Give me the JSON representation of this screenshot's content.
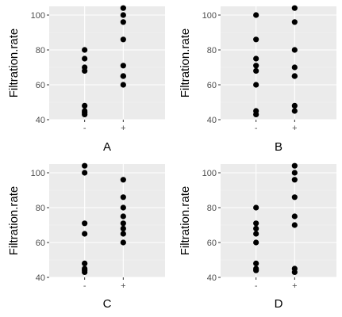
{
  "chart_data": [
    {
      "type": "scatter",
      "title": "",
      "xlabel": "A",
      "ylabel": "Filtration.rate",
      "categories": [
        "-",
        "+"
      ],
      "ylim": [
        40,
        105
      ],
      "yticks": [
        40,
        60,
        80,
        100
      ],
      "grid": true,
      "points": {
        "-": [
          80,
          75,
          70,
          68,
          48,
          45,
          44,
          43
        ],
        "+": [
          104,
          100,
          96,
          86,
          71,
          65,
          65,
          60
        ]
      }
    },
    {
      "type": "scatter",
      "title": "",
      "xlabel": "B",
      "ylabel": "Filtration.rate",
      "categories": [
        "-",
        "+"
      ],
      "ylim": [
        40,
        105
      ],
      "yticks": [
        40,
        60,
        80,
        100
      ],
      "grid": true,
      "points": {
        "-": [
          100,
          86,
          75,
          71,
          68,
          60,
          45,
          43
        ],
        "+": [
          104,
          96,
          80,
          70,
          65,
          65,
          48,
          45
        ]
      }
    },
    {
      "type": "scatter",
      "title": "",
      "xlabel": "C",
      "ylabel": "Filtration.rate",
      "categories": [
        "-",
        "+"
      ],
      "ylim": [
        40,
        105
      ],
      "yticks": [
        40,
        60,
        80,
        100
      ],
      "grid": true,
      "points": {
        "-": [
          104,
          100,
          71,
          65,
          48,
          45,
          44,
          43
        ],
        "+": [
          96,
          86,
          80,
          75,
          71,
          68,
          65,
          60
        ]
      }
    },
    {
      "type": "scatter",
      "title": "",
      "xlabel": "D",
      "ylabel": "Filtration.rate",
      "categories": [
        "-",
        "+"
      ],
      "ylim": [
        40,
        105
      ],
      "yticks": [
        40,
        60,
        80,
        100
      ],
      "grid": true,
      "points": {
        "-": [
          80,
          71,
          68,
          65,
          60,
          48,
          45,
          44
        ],
        "+": [
          104,
          100,
          96,
          86,
          75,
          70,
          45,
          43
        ]
      }
    }
  ],
  "style": {
    "panel_background": "#ebebeb",
    "grid_major": "#ffffff",
    "grid_minor": "#f4f4f4",
    "point_color": "#000000",
    "tick_color": "#333333"
  }
}
